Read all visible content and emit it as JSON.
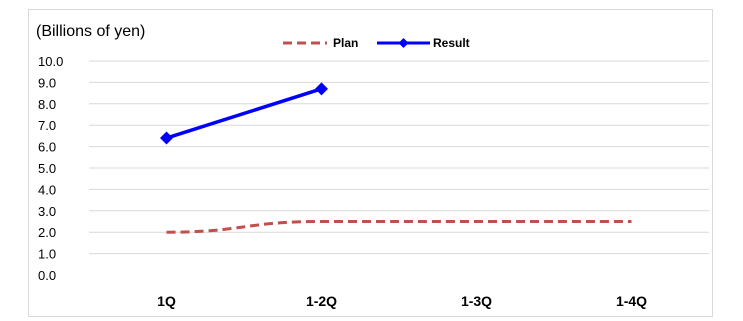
{
  "chart_data": {
    "type": "line",
    "unit_label": "(Billions of yen)",
    "categories": [
      "1Q",
      "1-2Q",
      "1-3Q",
      "1-4Q"
    ],
    "y_ticks": [
      "10.0",
      "9.0",
      "8.0",
      "7.0",
      "6.0",
      "5.0",
      "4.0",
      "3.0",
      "2.0",
      "1.0",
      "0.0"
    ],
    "ylim": [
      0,
      10
    ],
    "grid": true,
    "legend_position": "top",
    "series": [
      {
        "name": "Plan",
        "values": [
          2.0,
          2.5,
          2.5,
          2.5
        ],
        "color": "#c0504d",
        "style": "dashed"
      },
      {
        "name": "Result",
        "values": [
          6.4,
          8.7,
          null,
          null
        ],
        "color": "#0000ff",
        "style": "solid-diamond"
      }
    ]
  }
}
